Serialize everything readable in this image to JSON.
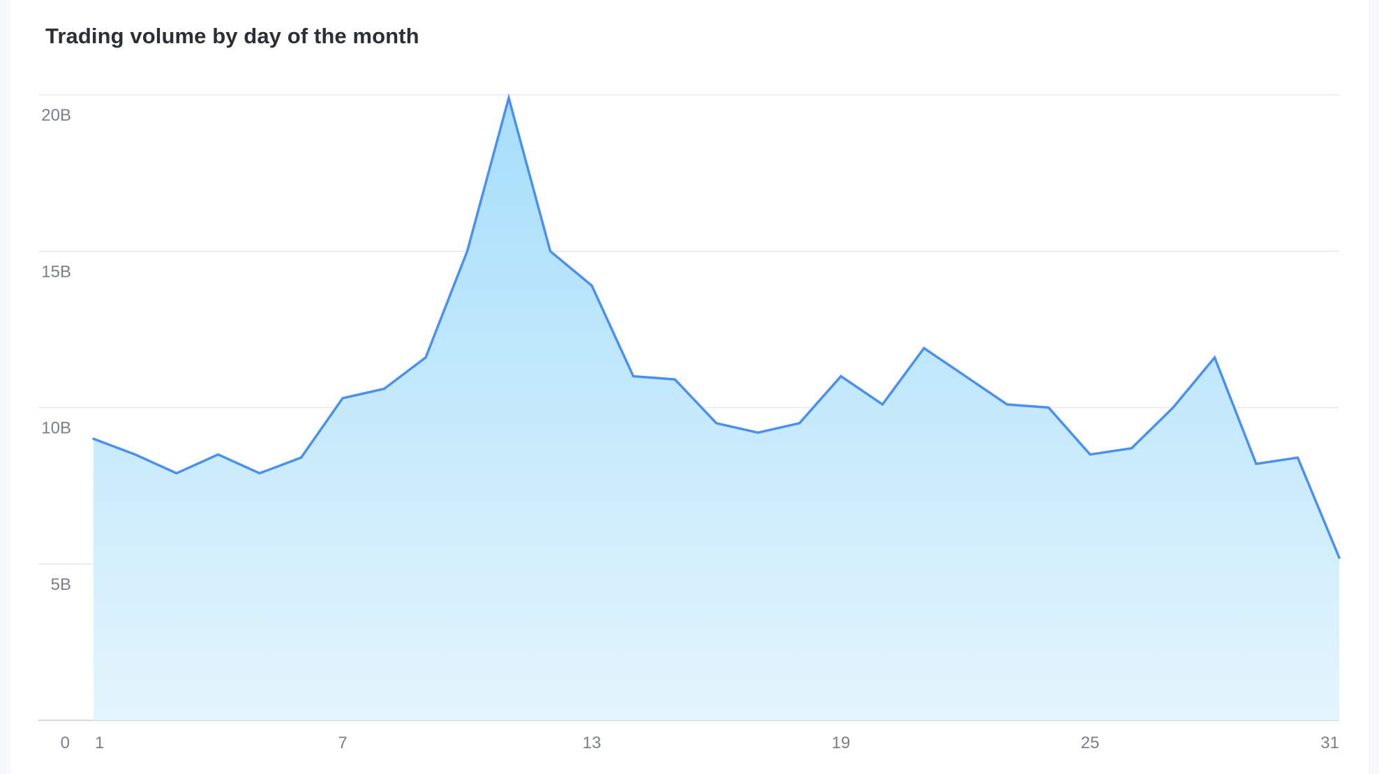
{
  "chart_data": {
    "type": "area",
    "title": "Trading volume by day of the month",
    "xlabel": "",
    "ylabel": "",
    "x": [
      1,
      2,
      3,
      4,
      5,
      6,
      7,
      8,
      9,
      10,
      11,
      12,
      13,
      14,
      15,
      16,
      17,
      18,
      19,
      20,
      21,
      22,
      23,
      24,
      25,
      26,
      27,
      28,
      29,
      30,
      31
    ],
    "series": [
      {
        "values": [
          9.0,
          8.5,
          7.9,
          8.5,
          7.9,
          8.4,
          10.3,
          10.6,
          11.6,
          15.0,
          19.9,
          15.0,
          13.9,
          11.0,
          10.9,
          9.5,
          9.2,
          9.5,
          11.0,
          10.1,
          11.9,
          11.0,
          10.1,
          10.0,
          8.5,
          8.7,
          10.0,
          11.6,
          8.2,
          8.4,
          5.2
        ],
        "color": "#4a90f0"
      }
    ],
    "x_ticks": [
      "1",
      "7",
      "13",
      "19",
      "25",
      "31"
    ],
    "y_ticks": [
      {
        "value": 0,
        "label": "0"
      },
      {
        "value": 5,
        "label": "5B"
      },
      {
        "value": 10,
        "label": "10B"
      },
      {
        "value": 15,
        "label": "15B"
      },
      {
        "value": 20,
        "label": "20B"
      }
    ],
    "ylim": [
      0,
      20
    ],
    "xlim": [
      1,
      31
    ],
    "grid": true,
    "legend": "none",
    "colors": {
      "line": "#4a90f0",
      "fill_top": "#a6defb",
      "fill_bottom": "#e4f5fd",
      "grid": "#e6e8eb",
      "axis": "#d5d8dc"
    }
  }
}
